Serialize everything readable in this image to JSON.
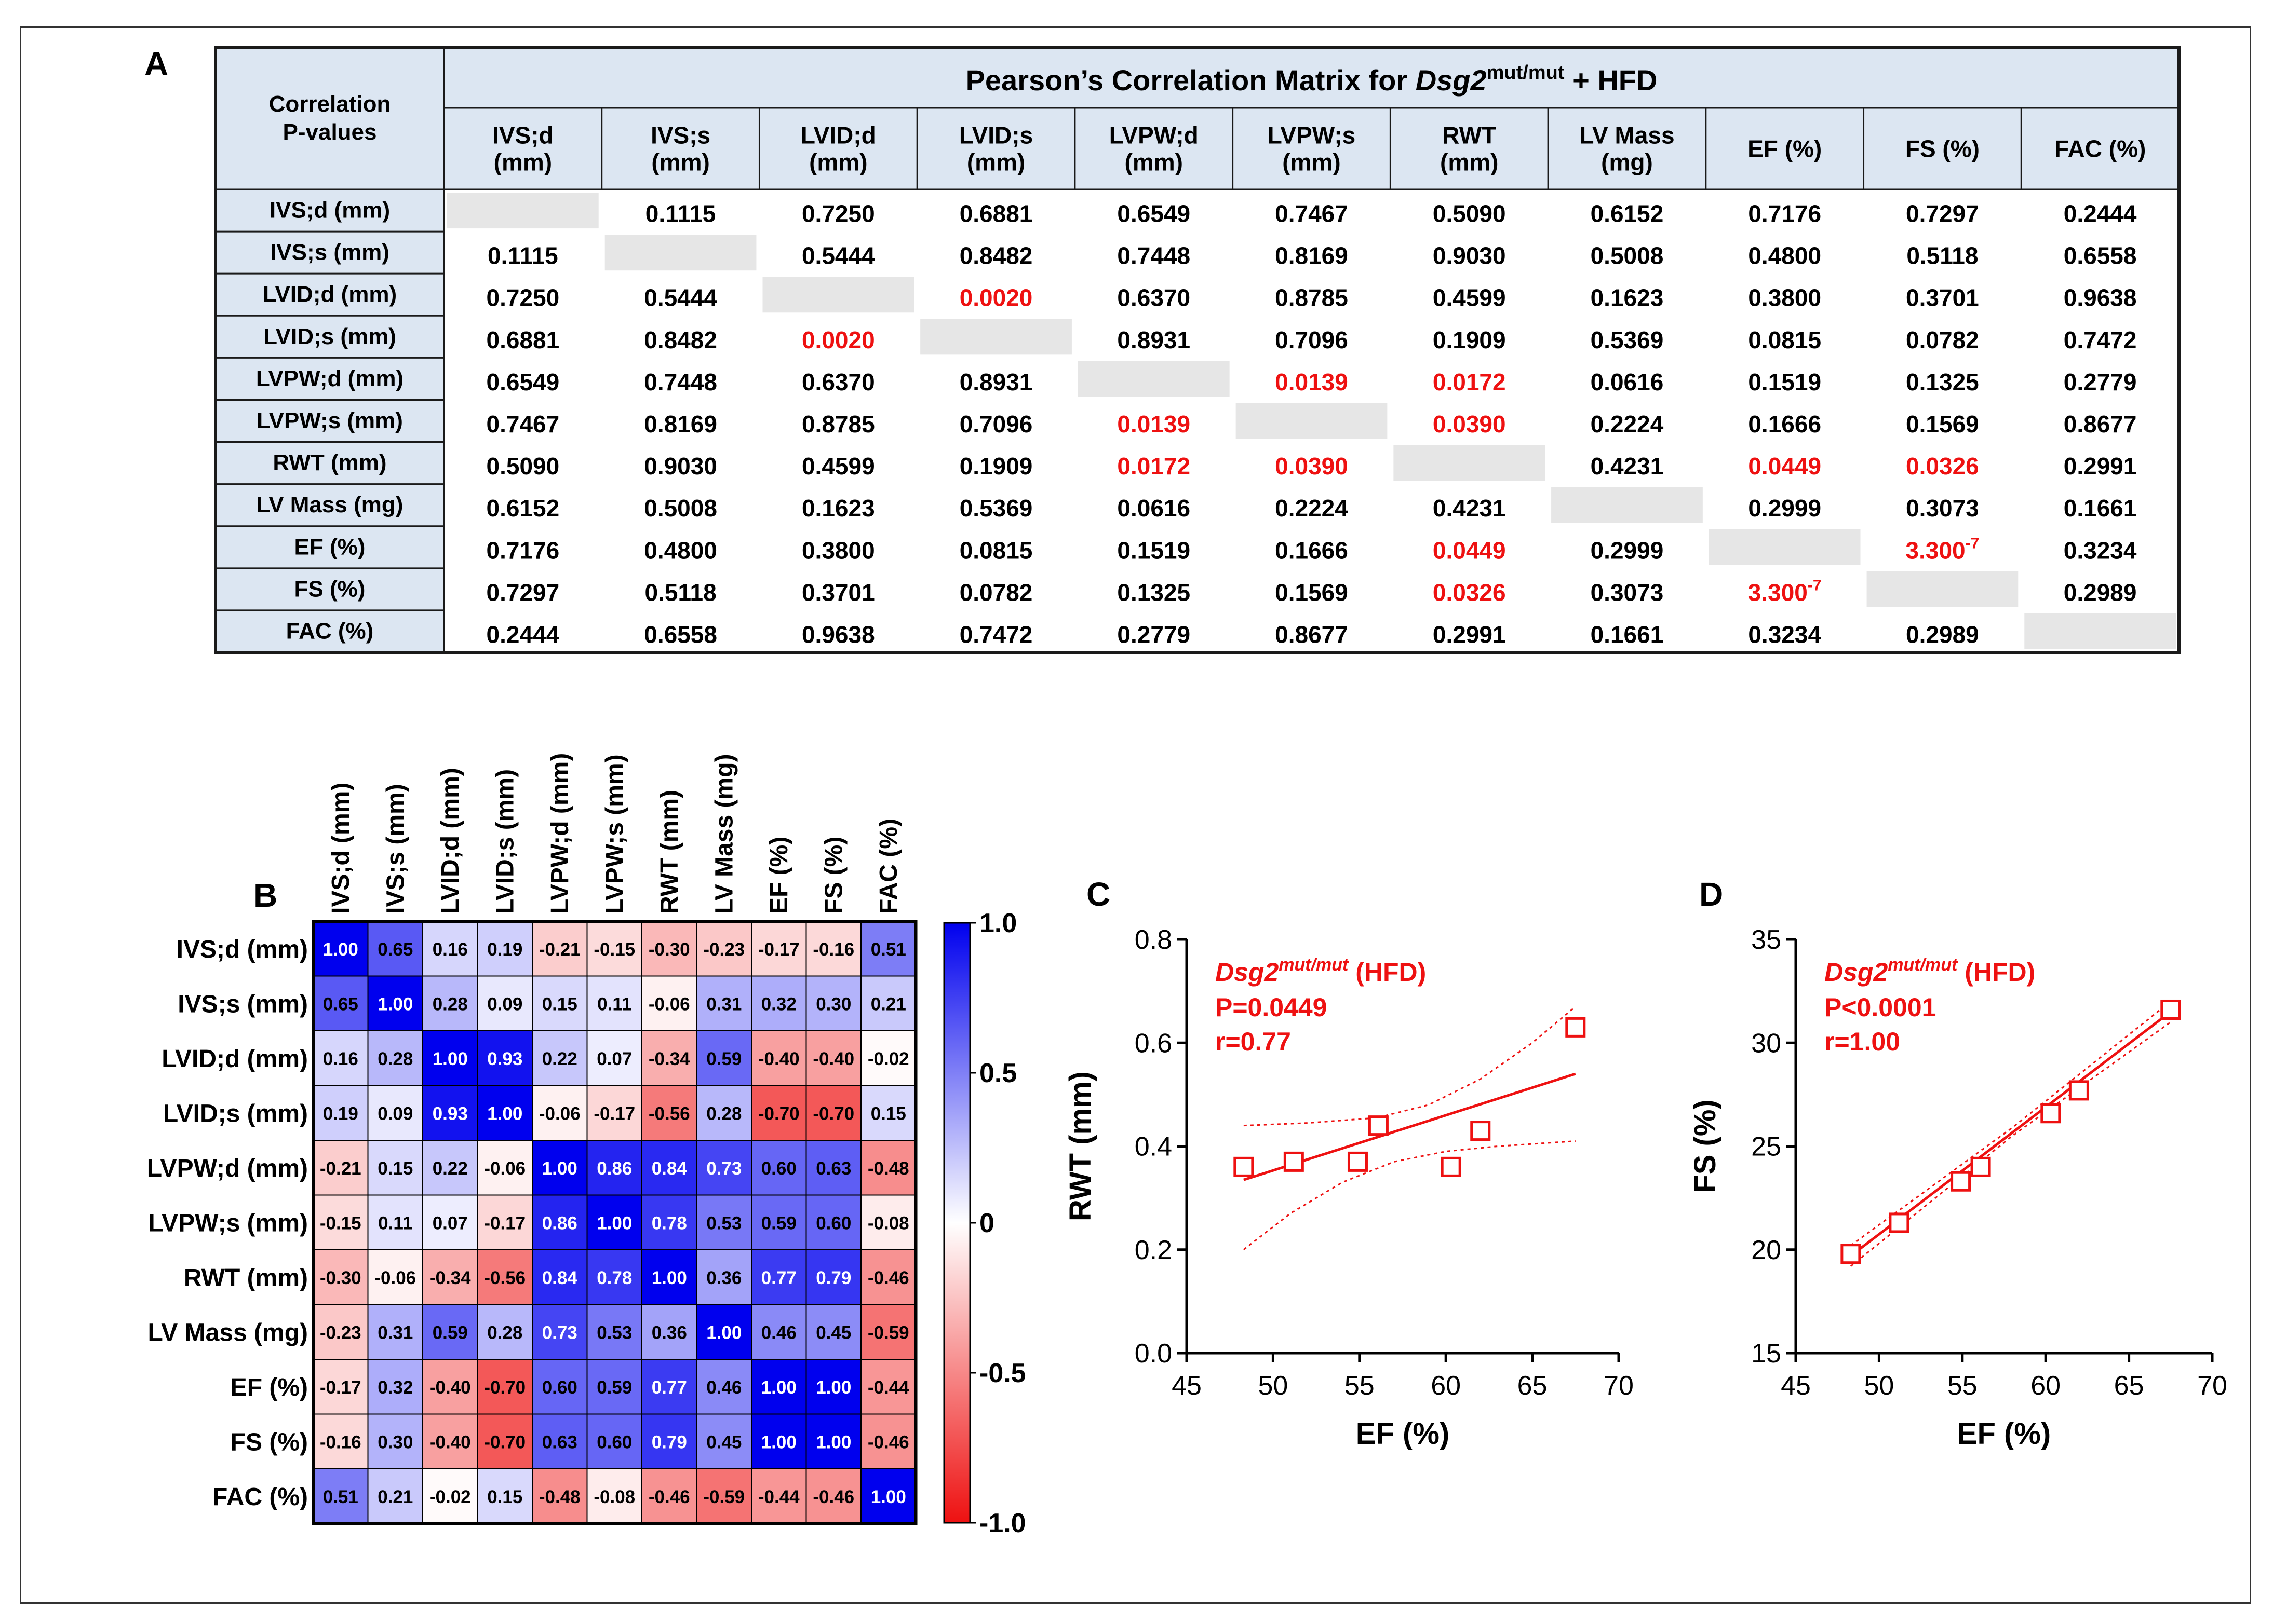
{
  "panel_labels": {
    "a": "A",
    "b": "B",
    "c": "C",
    "d": "D"
  },
  "colors": {
    "significant": "#ee1111",
    "table_header_bg": "#dce6f2",
    "table_border": "#1a1a1a",
    "diagonal_bg": "#e6e6e6",
    "heatmap_positive": "#0000ee",
    "heatmap_negative": "#ee1111",
    "scatter_red": "#ee1111"
  },
  "table": {
    "corner_label": "Correlation\nP-values",
    "title_prefix": "Pearson’s Correlation Matrix for ",
    "title_gene": "Dsg2",
    "title_sup": "mut/mut",
    "title_suffix": " + HFD",
    "col_headers": [
      "IVS;d\n(mm)",
      "IVS;s\n(mm)",
      "LVID;d\n(mm)",
      "LVID;s\n(mm)",
      "LVPW;d\n(mm)",
      "LVPW;s\n(mm)",
      "RWT\n(mm)",
      "LV Mass\n(mg)",
      "EF (%)",
      "FS (%)",
      "FAC (%)"
    ],
    "row_headers": [
      "IVS;d (mm)",
      "IVS;s (mm)",
      "LVID;d (mm)",
      "LVID;s (mm)",
      "LVPW;d (mm)",
      "LVPW;s (mm)",
      "RWT (mm)",
      "LV Mass (mg)",
      "EF (%)",
      "FS (%)",
      "FAC (%)"
    ],
    "rows": [
      [
        "",
        "0.1115",
        "0.7250",
        "0.6881",
        "0.6549",
        "0.7467",
        "0.5090",
        "0.6152",
        "0.7176",
        "0.7297",
        "0.2444"
      ],
      [
        "0.1115",
        "",
        "0.5444",
        "0.8482",
        "0.7448",
        "0.8169",
        "0.9030",
        "0.5008",
        "0.4800",
        "0.5118",
        "0.6558"
      ],
      [
        "0.7250",
        "0.5444",
        "",
        "0.0020",
        "0.6370",
        "0.8785",
        "0.4599",
        "0.1623",
        "0.3800",
        "0.3701",
        "0.9638"
      ],
      [
        "0.6881",
        "0.8482",
        "0.0020",
        "",
        "0.8931",
        "0.7096",
        "0.1909",
        "0.5369",
        "0.0815",
        "0.0782",
        "0.7472"
      ],
      [
        "0.6549",
        "0.7448",
        "0.6370",
        "0.8931",
        "",
        "0.0139",
        "0.0172",
        "0.0616",
        "0.1519",
        "0.1325",
        "0.2779"
      ],
      [
        "0.7467",
        "0.8169",
        "0.8785",
        "0.7096",
        "0.0139",
        "",
        "0.0390",
        "0.2224",
        "0.1666",
        "0.1569",
        "0.8677"
      ],
      [
        "0.5090",
        "0.9030",
        "0.4599",
        "0.1909",
        "0.0172",
        "0.0390",
        "",
        "0.4231",
        "0.0449",
        "0.0326",
        "0.2991"
      ],
      [
        "0.6152",
        "0.5008",
        "0.1623",
        "0.5369",
        "0.0616",
        "0.2224",
        "0.4231",
        "",
        "0.2999",
        "0.3073",
        "0.1661"
      ],
      [
        "0.7176",
        "0.4800",
        "0.3800",
        "0.0815",
        "0.1519",
        "0.1666",
        "0.0449",
        "0.2999",
        "",
        "3.300-7",
        "0.3234"
      ],
      [
        "0.7297",
        "0.5118",
        "0.3701",
        "0.0782",
        "0.1325",
        "0.1569",
        "0.0326",
        "0.3073",
        "3.300-7",
        "",
        "0.2989"
      ],
      [
        "0.2444",
        "0.6558",
        "0.9638",
        "0.7472",
        "0.2779",
        "0.8677",
        "0.2991",
        "0.1661",
        "0.3234",
        "0.2989",
        ""
      ]
    ]
  },
  "chart_data": [
    {
      "type": "heatmap",
      "panel": "B",
      "x_labels": [
        "IVS;d (mm)",
        "IVS;s (mm)",
        "LVID;d (mm)",
        "LVID;s (mm)",
        "LVPW;d (mm)",
        "LVPW;s (mm)",
        "RWT (mm)",
        "LV Mass (mg)",
        "EF (%)",
        "FS (%)",
        "FAC (%)"
      ],
      "y_labels": [
        "IVS;d (mm)",
        "IVS;s (mm)",
        "LVID;d (mm)",
        "LVID;s (mm)",
        "LVPW;d (mm)",
        "LVPW;s (mm)",
        "RWT (mm)",
        "LV Mass (mg)",
        "EF (%)",
        "FS (%)",
        "FAC (%)"
      ],
      "values": [
        [
          1.0,
          0.65,
          0.16,
          0.19,
          -0.21,
          -0.15,
          -0.3,
          -0.23,
          -0.17,
          -0.16,
          0.51
        ],
        [
          0.65,
          1.0,
          0.28,
          0.09,
          0.15,
          0.11,
          -0.06,
          0.31,
          0.32,
          0.3,
          0.21
        ],
        [
          0.16,
          0.28,
          1.0,
          0.93,
          0.22,
          0.07,
          -0.34,
          0.59,
          -0.4,
          -0.4,
          -0.02
        ],
        [
          0.19,
          0.09,
          0.93,
          1.0,
          -0.06,
          -0.17,
          -0.56,
          0.28,
          -0.7,
          -0.7,
          0.15
        ],
        [
          -0.21,
          0.15,
          0.22,
          -0.06,
          1.0,
          0.86,
          0.84,
          0.73,
          0.6,
          0.63,
          -0.48
        ],
        [
          -0.15,
          0.11,
          0.07,
          -0.17,
          0.86,
          1.0,
          0.78,
          0.53,
          0.59,
          0.6,
          -0.08
        ],
        [
          -0.3,
          -0.06,
          -0.34,
          -0.56,
          0.84,
          0.78,
          1.0,
          0.36,
          0.77,
          0.79,
          -0.46
        ],
        [
          -0.23,
          0.31,
          0.59,
          0.28,
          0.73,
          0.53,
          0.36,
          1.0,
          0.46,
          0.45,
          -0.59
        ],
        [
          -0.17,
          0.32,
          -0.4,
          -0.7,
          0.6,
          0.59,
          0.77,
          0.46,
          1.0,
          1.0,
          -0.44
        ],
        [
          -0.16,
          0.3,
          -0.4,
          -0.7,
          0.63,
          0.6,
          0.79,
          0.45,
          1.0,
          1.0,
          -0.46
        ],
        [
          0.51,
          0.21,
          -0.02,
          0.15,
          -0.48,
          -0.08,
          -0.46,
          -0.59,
          -0.44,
          -0.46,
          1.0
        ]
      ],
      "colorbar_ticks": [
        "1.0",
        "0.5",
        "0",
        "-0.5",
        "-1.0"
      ],
      "colorbar_tick_values": [
        1.0,
        0.5,
        0,
        -0.5,
        -1.0
      ],
      "vmin": -1.0,
      "vmax": 1.0
    },
    {
      "type": "scatter",
      "panel": "C",
      "xlabel": "EF (%)",
      "ylabel": "RWT (mm)",
      "xlim": [
        45,
        70
      ],
      "ylim": [
        0.0,
        0.8
      ],
      "x_ticks": [
        45,
        50,
        55,
        60,
        65,
        70
      ],
      "x_tick_labels": [
        "45",
        "50",
        "55",
        "60",
        "65",
        "70"
      ],
      "y_ticks": [
        0.0,
        0.2,
        0.4,
        0.6,
        0.8
      ],
      "y_tick_labels": [
        "0.0",
        "0.2",
        "0.4",
        "0.6",
        "0.8"
      ],
      "points": [
        {
          "x": 48.3,
          "y": 0.36
        },
        {
          "x": 51.2,
          "y": 0.37
        },
        {
          "x": 54.9,
          "y": 0.37
        },
        {
          "x": 56.1,
          "y": 0.44
        },
        {
          "x": 60.3,
          "y": 0.36
        },
        {
          "x": 62.0,
          "y": 0.43
        },
        {
          "x": 67.5,
          "y": 0.63
        }
      ],
      "fit_line": [
        {
          "x": 48.3,
          "y": 0.335
        },
        {
          "x": 67.5,
          "y": 0.54
        }
      ],
      "ci_upper": [
        {
          "x": 48.3,
          "y": 0.44
        },
        {
          "x": 52,
          "y": 0.445
        },
        {
          "x": 56,
          "y": 0.455
        },
        {
          "x": 59,
          "y": 0.48
        },
        {
          "x": 62,
          "y": 0.53
        },
        {
          "x": 65,
          "y": 0.6
        },
        {
          "x": 67.5,
          "y": 0.67
        }
      ],
      "ci_lower": [
        {
          "x": 48.3,
          "y": 0.2
        },
        {
          "x": 51,
          "y": 0.27
        },
        {
          "x": 54,
          "y": 0.33
        },
        {
          "x": 57,
          "y": 0.37
        },
        {
          "x": 60,
          "y": 0.39
        },
        {
          "x": 63,
          "y": 0.4
        },
        {
          "x": 67.5,
          "y": 0.41
        }
      ],
      "annotation": {
        "gene": "Dsg2",
        "sup": "mut/mut",
        "suffix": " (HFD)",
        "p": "P=0.0449",
        "r": "r=0.77"
      }
    },
    {
      "type": "scatter",
      "panel": "D",
      "xlabel": "EF (%)",
      "ylabel": "FS (%)",
      "xlim": [
        45,
        70
      ],
      "ylim": [
        15,
        35
      ],
      "x_ticks": [
        45,
        50,
        55,
        60,
        65,
        70
      ],
      "x_tick_labels": [
        "45",
        "50",
        "55",
        "60",
        "65",
        "70"
      ],
      "y_ticks": [
        15,
        20,
        25,
        30,
        35
      ],
      "y_tick_labels": [
        "15",
        "20",
        "25",
        "30",
        "35"
      ],
      "points": [
        {
          "x": 48.3,
          "y": 19.8
        },
        {
          "x": 51.2,
          "y": 21.3
        },
        {
          "x": 54.9,
          "y": 23.3
        },
        {
          "x": 56.1,
          "y": 24.0
        },
        {
          "x": 60.3,
          "y": 26.6
        },
        {
          "x": 62.0,
          "y": 27.7
        },
        {
          "x": 67.5,
          "y": 31.6
        }
      ],
      "fit_line": [
        {
          "x": 48.3,
          "y": 19.7
        },
        {
          "x": 67.5,
          "y": 31.5
        }
      ],
      "ci_upper": [
        {
          "x": 48.3,
          "y": 20.2
        },
        {
          "x": 58,
          "y": 25.9
        },
        {
          "x": 67.5,
          "y": 32.0
        }
      ],
      "ci_lower": [
        {
          "x": 48.3,
          "y": 19.2
        },
        {
          "x": 58,
          "y": 25.5
        },
        {
          "x": 67.5,
          "y": 31.0
        }
      ],
      "annotation": {
        "gene": "Dsg2",
        "sup": "mut/mut",
        "suffix": " (HFD)",
        "p": "P<0.0001",
        "r": "r=1.00"
      }
    }
  ]
}
